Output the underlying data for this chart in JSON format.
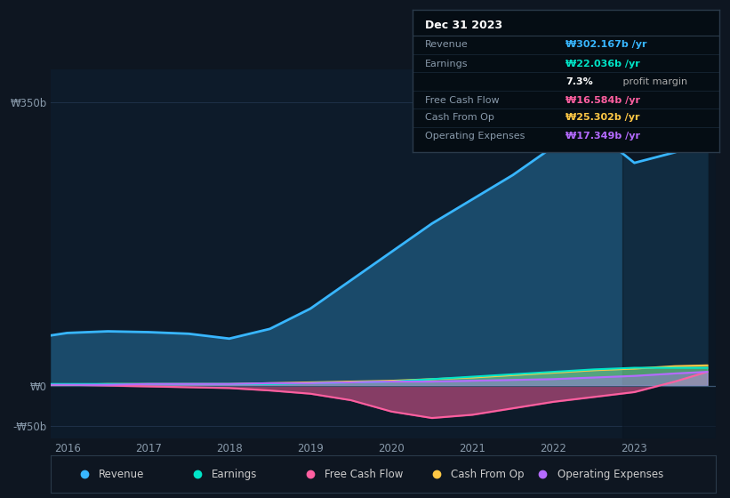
{
  "bg_color": "#0e1621",
  "plot_bg_color": "#0d1b2a",
  "grid_color": "#1e3048",
  "years": [
    2015.8,
    2016.0,
    2016.5,
    2017.0,
    2017.5,
    2018.0,
    2018.5,
    2019.0,
    2019.5,
    2020.0,
    2020.5,
    2021.0,
    2021.5,
    2022.0,
    2022.5,
    2023.0,
    2023.5,
    2023.9
  ],
  "revenue": [
    62,
    65,
    67,
    66,
    64,
    58,
    70,
    95,
    130,
    165,
    200,
    230,
    260,
    295,
    315,
    275,
    288,
    302
  ],
  "earnings": [
    2,
    2,
    2,
    2,
    2,
    2,
    2,
    3,
    4,
    5,
    8,
    11,
    14,
    17,
    20,
    22,
    22,
    22
  ],
  "free_cash_flow": [
    1,
    1,
    0,
    -1,
    -2,
    -3,
    -6,
    -10,
    -18,
    -32,
    -40,
    -36,
    -28,
    -20,
    -14,
    -8,
    5,
    17
  ],
  "cash_from_op": [
    1,
    1,
    2,
    2,
    2,
    2,
    3,
    4,
    5,
    6,
    8,
    10,
    13,
    16,
    19,
    21,
    24,
    25
  ],
  "operating_expenses": [
    1,
    1,
    1,
    2,
    2,
    2,
    3,
    3,
    4,
    5,
    5,
    6,
    7,
    8,
    10,
    12,
    15,
    17
  ],
  "revenue_color": "#38b6ff",
  "earnings_color": "#00e5c8",
  "fcf_color": "#ff5fa0",
  "cashop_color": "#ffc845",
  "opex_color": "#b56bff",
  "revenue_fill": "#1a4a6a",
  "ylim_min": -65,
  "ylim_max": 390,
  "yticks": [
    -50,
    0,
    350
  ],
  "ytick_labels": [
    "-₩50b",
    "₩0",
    "₩350b"
  ],
  "xtick_years": [
    2016,
    2017,
    2018,
    2019,
    2020,
    2021,
    2022,
    2023
  ],
  "legend_labels": [
    "Revenue",
    "Earnings",
    "Free Cash Flow",
    "Cash From Op",
    "Operating Expenses"
  ],
  "legend_colors": [
    "#38b6ff",
    "#00e5c8",
    "#ff5fa0",
    "#ffc845",
    "#b56bff"
  ],
  "tooltip_title": "Dec 31 2023",
  "tooltip_rows": [
    {
      "label": "Revenue",
      "value": "₩302.167b /yr",
      "color": "#38b6ff"
    },
    {
      "label": "Earnings",
      "value": "₩22.036b /yr",
      "color": "#00e5c8"
    },
    {
      "label": "",
      "value": "7.3%",
      "color": "white",
      "suffix": " profit margin",
      "suffix_color": "#aaaaaa"
    },
    {
      "label": "Free Cash Flow",
      "value": "₩16.584b /yr",
      "color": "#ff5fa0"
    },
    {
      "label": "Cash From Op",
      "value": "₩25.302b /yr",
      "color": "#ffc845"
    },
    {
      "label": "Operating Expenses",
      "value": "₩17.349b /yr",
      "color": "#b56bff"
    }
  ]
}
